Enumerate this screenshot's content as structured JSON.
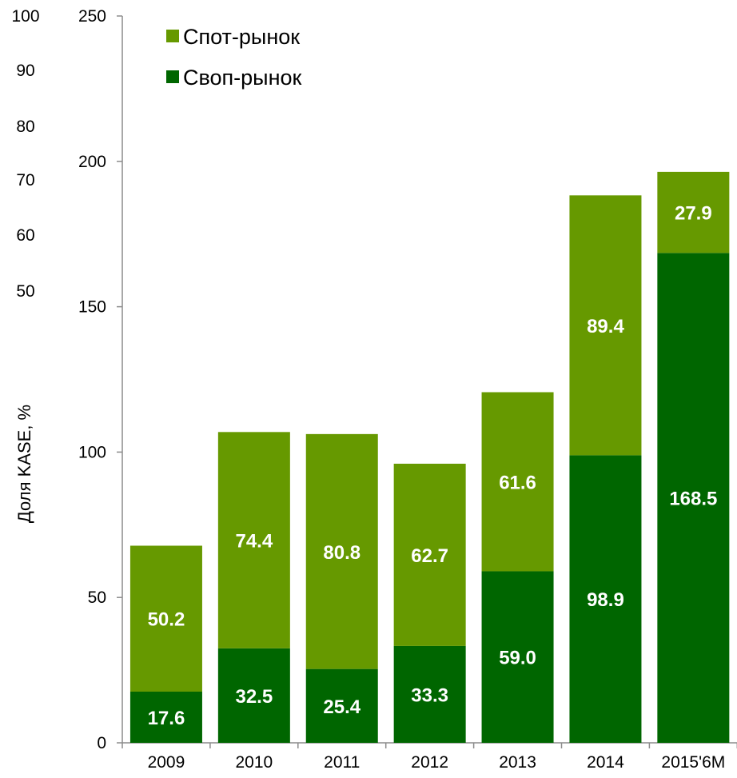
{
  "chart_data": {
    "type": "bar",
    "stacked": true,
    "categories": [
      "2009",
      "2010",
      "2011",
      "2012",
      "2013",
      "2014",
      "2015'6M"
    ],
    "series": [
      {
        "name": "Своп-рынок",
        "color": "#006600",
        "values": [
          17.6,
          32.5,
          25.4,
          33.3,
          59.0,
          98.9,
          168.5
        ]
      },
      {
        "name": "Спот-рынок",
        "color": "#669900",
        "values": [
          50.2,
          74.4,
          80.8,
          62.7,
          61.6,
          89.4,
          27.9
        ]
      }
    ],
    "data_labels": [
      [
        "17.6",
        "32.5",
        "25.4",
        "33.3",
        "59.0",
        "98.9",
        "168.5"
      ],
      [
        "50.2",
        "74.4",
        "80.8",
        "62.7",
        "61.6",
        "89.4",
        "27.9"
      ]
    ],
    "ylim": [
      0,
      250
    ],
    "yticks": [
      "0",
      "50",
      "100",
      "150",
      "200",
      "250"
    ],
    "secondary_ticks": [
      "100",
      "90",
      "80",
      "70",
      "60",
      "50"
    ],
    "ylabel": "Доля KASE, %",
    "xlabel": "",
    "title": "",
    "legend": {
      "position": "top-left",
      "items": [
        {
          "label": "Спот-рынок",
          "color": "#669900"
        },
        {
          "label": "Своп-рынок",
          "color": "#006600"
        }
      ]
    },
    "grid": false
  }
}
